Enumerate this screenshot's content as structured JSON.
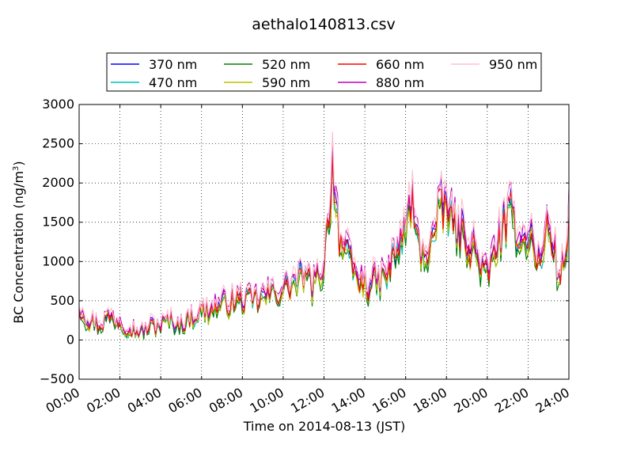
{
  "chart_data": {
    "type": "line",
    "title": "aethalo140813.csv",
    "xlabel": "Time on 2014-08-13 (JST)",
    "ylabel": "BC Concentration (ng/m",
    "ylabel_sup": "3",
    "ylabel_end": ")",
    "xlim": [
      0,
      24
    ],
    "ylim": [
      -500,
      3000
    ],
    "x_ticks": [
      "00:00",
      "02:00",
      "04:00",
      "06:00",
      "08:00",
      "10:00",
      "12:00",
      "14:00",
      "16:00",
      "18:00",
      "20:00",
      "22:00",
      "24:00"
    ],
    "y_ticks": [
      "−500",
      "0",
      "500",
      "1000",
      "1500",
      "2000",
      "2500",
      "3000"
    ],
    "grid": true,
    "legend_placement": "top, above plot",
    "x_unit": "hours",
    "key_points": {
      "x": [
        0,
        0.25,
        0.5,
        1.0,
        1.5,
        2.0,
        2.5,
        3.0,
        3.5,
        4.0,
        4.5,
        5.0,
        5.5,
        6.0,
        6.5,
        7.0,
        7.5,
        8.0,
        8.5,
        9.0,
        9.5,
        10.0,
        10.5,
        11.0,
        11.5,
        12.0,
        12.2,
        12.4,
        12.6,
        12.8,
        13.0,
        13.3,
        13.6,
        14.0,
        14.5,
        15.0,
        15.3,
        15.6,
        16.0,
        16.3,
        16.6,
        17.0,
        17.3,
        17.6,
        18.0,
        18.3,
        18.6,
        19.0,
        19.3,
        19.6,
        20.0,
        20.3,
        20.6,
        20.9,
        21.2,
        21.5,
        21.8,
        22.0,
        22.3,
        22.6,
        22.9,
        23.2,
        23.5,
        23.8,
        24.0
      ],
      "y": [
        450,
        350,
        250,
        200,
        300,
        250,
        150,
        100,
        180,
        200,
        250,
        200,
        300,
        350,
        400,
        450,
        500,
        520,
        500,
        550,
        600,
        650,
        750,
        800,
        700,
        1000,
        1500,
        2300,
        1800,
        1300,
        1100,
        1000,
        800,
        700,
        750,
        800,
        1000,
        1200,
        1400,
        1900,
        1200,
        1100,
        1300,
        1600,
        1800,
        1500,
        1400,
        1300,
        1200,
        1000,
        800,
        1100,
        1300,
        1500,
        1600,
        1400,
        1300,
        1400,
        1200,
        900,
        1500,
        1300,
        800,
        1000,
        1600
      ]
    },
    "series": [
      {
        "name": "370 nm",
        "color": "#0000ff",
        "scale": 1.0,
        "offset": 0,
        "seed": 11
      },
      {
        "name": "470 nm",
        "color": "#00bfbf",
        "scale": 0.96,
        "offset": -10,
        "seed": 23
      },
      {
        "name": "520 nm",
        "color": "#008000",
        "scale": 0.93,
        "offset": -15,
        "seed": 37
      },
      {
        "name": "590 nm",
        "color": "#bfbf00",
        "scale": 0.94,
        "offset": 0,
        "seed": 41
      },
      {
        "name": "660 nm",
        "color": "#ff0000",
        "scale": 0.97,
        "offset": 15,
        "seed": 53
      },
      {
        "name": "880 nm",
        "color": "#bf00bf",
        "scale": 1.04,
        "offset": 30,
        "seed": 67
      },
      {
        "name": "950 nm",
        "color": "#ffc0cb",
        "scale": 1.06,
        "offset": 40,
        "seed": 79
      }
    ]
  }
}
